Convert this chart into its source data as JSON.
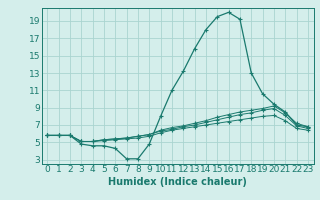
{
  "xlabel": "Humidex (Indice chaleur)",
  "bg_color": "#d4eeeb",
  "grid_color": "#aad4d0",
  "line_color": "#1a7a6e",
  "x_ticks": [
    0,
    1,
    2,
    3,
    4,
    5,
    6,
    7,
    8,
    9,
    10,
    11,
    12,
    13,
    14,
    15,
    16,
    17,
    18,
    19,
    20,
    21,
    22,
    23
  ],
  "y_ticks": [
    3,
    5,
    7,
    9,
    11,
    13,
    15,
    17,
    19
  ],
  "xlim": [
    -0.5,
    23.5
  ],
  "ylim": [
    2.5,
    20.5
  ],
  "line1_x": [
    0,
    1,
    2,
    3,
    4,
    5,
    6,
    7,
    8,
    9,
    10,
    11,
    12,
    13,
    14,
    15,
    16,
    17,
    18,
    19,
    20,
    21,
    22,
    23
  ],
  "line1_y": [
    5.8,
    5.8,
    5.8,
    4.8,
    4.6,
    4.6,
    4.3,
    3.1,
    3.1,
    4.8,
    8.0,
    11.0,
    13.2,
    15.8,
    18.0,
    19.5,
    20.0,
    19.2,
    13.0,
    10.6,
    9.4,
    8.5,
    7.0,
    6.8
  ],
  "line2_x": [
    0,
    1,
    2,
    3,
    4,
    5,
    6,
    7,
    8,
    9,
    10,
    11,
    12,
    13,
    14,
    15,
    16,
    17,
    18,
    19,
    20,
    21,
    22,
    23
  ],
  "line2_y": [
    5.8,
    5.8,
    5.8,
    5.1,
    5.1,
    5.3,
    5.4,
    5.5,
    5.7,
    5.9,
    6.4,
    6.7,
    6.9,
    7.2,
    7.5,
    7.9,
    8.2,
    8.5,
    8.7,
    8.9,
    9.2,
    8.4,
    7.2,
    6.8
  ],
  "line3_x": [
    0,
    1,
    2,
    3,
    4,
    5,
    6,
    7,
    8,
    9,
    10,
    11,
    12,
    13,
    14,
    15,
    16,
    17,
    18,
    19,
    20,
    21,
    22,
    23
  ],
  "line3_y": [
    5.8,
    5.8,
    5.8,
    5.1,
    5.1,
    5.3,
    5.4,
    5.5,
    5.7,
    5.9,
    6.3,
    6.5,
    6.8,
    7.0,
    7.3,
    7.6,
    7.9,
    8.2,
    8.4,
    8.7,
    8.9,
    8.1,
    6.9,
    6.6
  ],
  "line4_x": [
    0,
    1,
    2,
    3,
    4,
    5,
    6,
    7,
    8,
    9,
    10,
    11,
    12,
    13,
    14,
    15,
    16,
    17,
    18,
    19,
    20,
    21,
    22,
    23
  ],
  "line4_y": [
    5.8,
    5.8,
    5.8,
    5.1,
    5.1,
    5.2,
    5.3,
    5.4,
    5.5,
    5.7,
    6.1,
    6.4,
    6.6,
    6.8,
    7.0,
    7.2,
    7.4,
    7.6,
    7.8,
    8.0,
    8.1,
    7.5,
    6.6,
    6.4
  ],
  "xlabel_fontsize": 7,
  "tick_fontsize": 6.5
}
